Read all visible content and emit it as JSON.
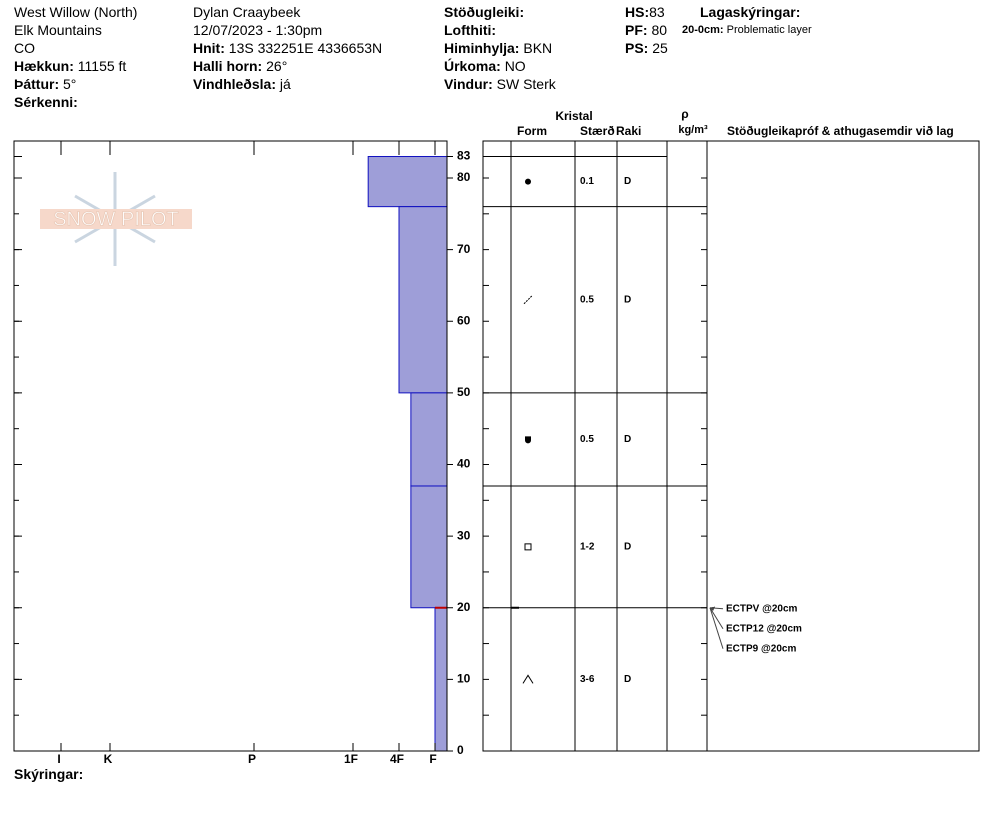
{
  "header": {
    "col1": {
      "location": "West Willow (North)",
      "range": "Elk Mountains",
      "state": "CO",
      "elevation_label": "Hækkun:",
      "elevation": "11155 ft",
      "aspect_label": "Þáttur:",
      "aspect": "5°",
      "features_label": "Sérkenni:"
    },
    "col2": {
      "observer": "Dylan Craaybeek",
      "datetime": "12/07/2023 - 1:30pm",
      "coords_label": "Hnit:",
      "coords": "13S 332251E 4336653N",
      "slope_label": "Halli horn:",
      "slope": "26°",
      "wind_loading_label": "Vindhleðsla:",
      "wind_loading": "já"
    },
    "col3": {
      "stability_label": "Stöðugleiki:",
      "air_temp_label": "Lofthiti:",
      "sky_label": "Himinhylja:",
      "sky": "BKN",
      "precip_label": "Úrkoma:",
      "precip": "NO",
      "wind_label": "Vindur:",
      "wind": "SW Sterk"
    },
    "col4": {
      "hs_label": "HS:",
      "hs": "83",
      "pf_label": "PF:",
      "pf": "80",
      "ps_label": "PS:",
      "ps": "25"
    },
    "legend": {
      "title": "Lagaskýringar:",
      "depth": "20-0cm:",
      "text": "Problematic layer"
    }
  },
  "logo": "SNOW PILOT",
  "profile": {
    "depth_lim": [
      0,
      83
    ],
    "depth_ticks": [
      0,
      10,
      20,
      30,
      40,
      50,
      60,
      70,
      80,
      83
    ],
    "hardness_ticks": [
      {
        "value": 6,
        "label": "I"
      },
      {
        "value": 5,
        "label": "K"
      },
      {
        "value": 4,
        "label": "P"
      },
      {
        "value": 3,
        "label": "1F"
      },
      {
        "value": 2,
        "label": "4F"
      },
      {
        "value": 1,
        "label": "F"
      }
    ],
    "layers": [
      {
        "top": 83,
        "bottom": 76,
        "hardness": 2.67,
        "size": "0.1",
        "moisture": "D"
      },
      {
        "top": 76,
        "bottom": 50,
        "hardness": 2,
        "size": "0.5",
        "moisture": "D"
      },
      {
        "top": 50,
        "bottom": 37,
        "hardness": 1.67,
        "size": "0.5",
        "moisture": "D"
      },
      {
        "top": 37,
        "bottom": 20,
        "hardness": 1.67,
        "size": "1-2",
        "moisture": "D"
      },
      {
        "top": 20,
        "bottom": 0,
        "hardness": 1,
        "size": "3-6",
        "moisture": "D"
      }
    ]
  },
  "table": {
    "crystal": "Kristal",
    "form": "Form",
    "size": "Stærð",
    "moisture": "Raki",
    "rho": "ρ",
    "density_unit": "kg/m³",
    "comments": "Stöðugleikapróf & athugasemdir við lag"
  },
  "tests": {
    "depth": 20,
    "items": [
      "ECTPV @20cm",
      "ECTP12 @20cm",
      "ECTP9 @20cm"
    ]
  },
  "footer": "Skýringar:"
}
